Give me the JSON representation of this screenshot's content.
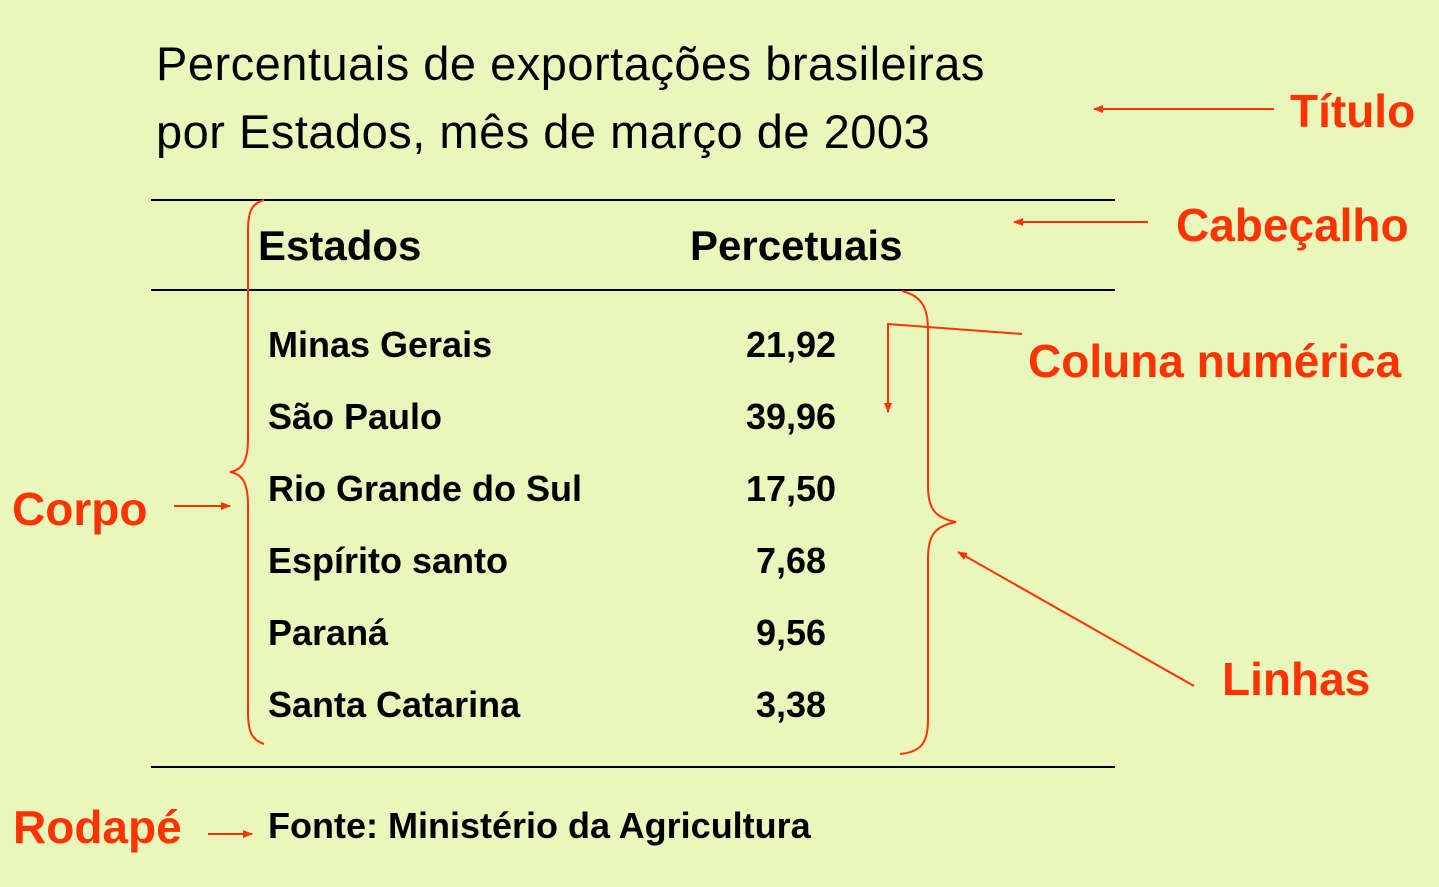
{
  "title": {
    "line1": "Percentuais de exportações brasileiras",
    "line2": "por Estados, mês de março de 2003"
  },
  "table": {
    "headers": [
      "Estados",
      "Percetuais"
    ],
    "rows": [
      {
        "state": "Minas Gerais",
        "value": "21,92"
      },
      {
        "state": "São Paulo",
        "value": "39,96"
      },
      {
        "state": "Rio Grande do Sul",
        "value": "17,50"
      },
      {
        "state": "Espírito santo",
        "value": "7,68"
      },
      {
        "state": "Paraná",
        "value": "9,56"
      },
      {
        "state": "Santa Catarina",
        "value": "3,38"
      }
    ]
  },
  "footer": "Fonte: Ministério da Agricultura",
  "annotations": {
    "titulo": "Título",
    "cabecalho": "Cabeçalho",
    "coluna_numerica": "Coluna numérica",
    "corpo": "Corpo",
    "linhas": "Linhas",
    "rodape": "Rodapé"
  },
  "colors": {
    "background": "#e9f6bc",
    "annotation": "#ff3300",
    "text": "#000000"
  }
}
